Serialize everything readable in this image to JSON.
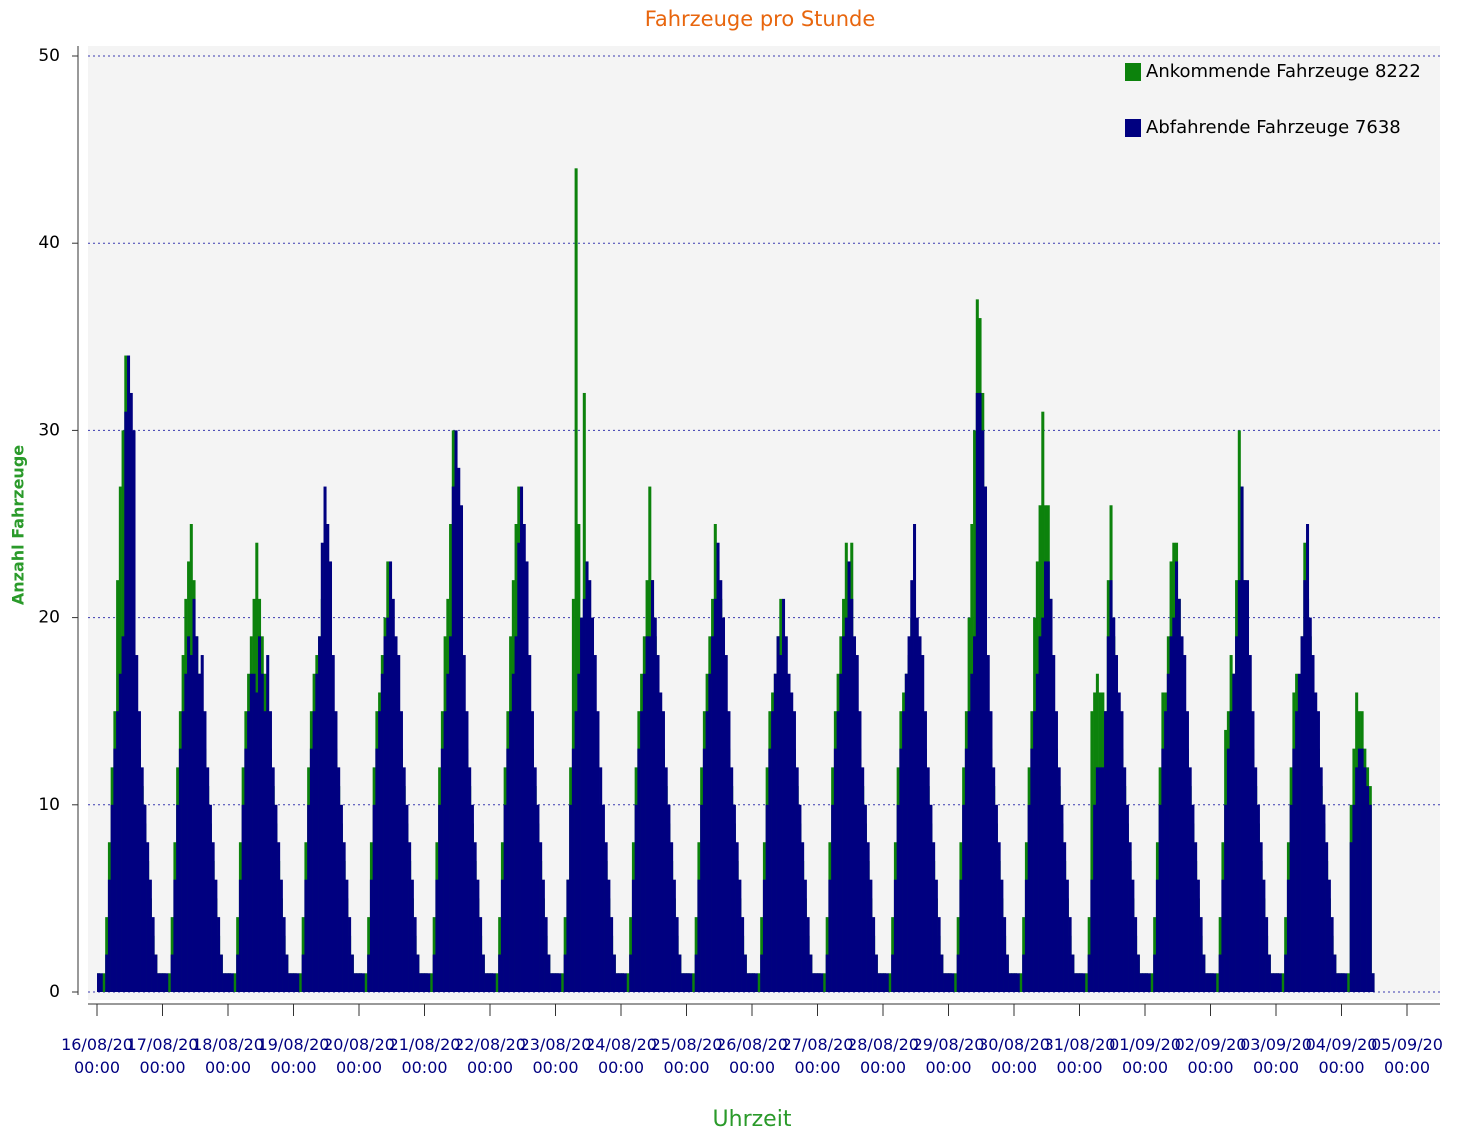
{
  "chart_data": {
    "type": "bar",
    "title": "Fahrzeuge pro Stunde",
    "x_label": "Uhrzeit",
    "y_label": "Anzahl Fahrzeuge",
    "grid": true,
    "legend": "top-right",
    "xlim": [
      0,
      480
    ],
    "ylim": [
      0,
      50
    ],
    "yticks": [
      0,
      10,
      20,
      30,
      40,
      50
    ],
    "xticks": [
      {
        "value": 0,
        "label": "16/08/20 00:00"
      },
      {
        "value": 24,
        "label": "17/08/20 00:00"
      },
      {
        "value": 48,
        "label": "18/08/20 00:00"
      },
      {
        "value": 72,
        "label": "19/08/20 00:00"
      },
      {
        "value": 96,
        "label": "20/08/20 00:00"
      },
      {
        "value": 120,
        "label": "21/08/20 00:00"
      },
      {
        "value": 144,
        "label": "22/08/20 00:00"
      },
      {
        "value": 168,
        "label": "23/08/20 00:00"
      },
      {
        "value": 192,
        "label": "24/08/20 00:00"
      },
      {
        "value": 216,
        "label": "25/08/20 00:00"
      },
      {
        "value": 240,
        "label": "26/08/20 00:00"
      },
      {
        "value": 264,
        "label": "27/08/20 00:00"
      },
      {
        "value": 288,
        "label": "28/08/20 00:00"
      },
      {
        "value": 312,
        "label": "29/08/20 00:00"
      },
      {
        "value": 336,
        "label": "30/08/20 00:00"
      },
      {
        "value": 360,
        "label": "31/08/20 00:00"
      },
      {
        "value": 384,
        "label": "01/09/20 00:00"
      },
      {
        "value": 408,
        "label": "02/09/20 00:00"
      },
      {
        "value": 432,
        "label": "03/09/20 00:00"
      },
      {
        "value": 456,
        "label": "04/09/20 00:00"
      },
      {
        "value": 480,
        "label": "05/09/20 00:00"
      }
    ],
    "x": [
      0,
      1,
      2,
      3,
      4,
      5,
      6,
      7,
      8,
      9,
      10,
      11,
      12,
      13,
      14,
      15,
      16,
      17,
      18,
      19,
      20,
      21,
      22,
      23,
      24,
      25,
      26,
      27,
      28,
      29,
      30,
      31,
      32,
      33,
      34,
      35,
      36,
      37,
      38,
      39,
      40,
      41,
      42,
      43,
      44,
      45,
      46,
      47,
      48,
      49,
      50,
      51,
      52,
      53,
      54,
      55,
      56,
      57,
      58,
      59,
      60,
      61,
      62,
      63,
      64,
      65,
      66,
      67,
      68,
      69,
      70,
      71,
      72,
      73,
      74,
      75,
      76,
      77,
      78,
      79,
      80,
      81,
      82,
      83,
      84,
      85,
      86,
      87,
      88,
      89,
      90,
      91,
      92,
      93,
      94,
      95,
      96,
      97,
      98,
      99,
      100,
      101,
      102,
      103,
      104,
      105,
      106,
      107,
      108,
      109,
      110,
      111,
      112,
      113,
      114,
      115,
      116,
      117,
      118,
      119,
      120,
      121,
      122,
      123,
      124,
      125,
      126,
      127,
      128,
      129,
      130,
      131,
      132,
      133,
      134,
      135,
      136,
      137,
      138,
      139,
      140,
      141,
      142,
      143,
      144,
      145,
      146,
      147,
      148,
      149,
      150,
      151,
      152,
      153,
      154,
      155,
      156,
      157,
      158,
      159,
      160,
      161,
      162,
      163,
      164,
      165,
      166,
      167,
      168,
      169,
      170,
      171,
      172,
      173,
      174,
      175,
      176,
      177,
      178,
      179,
      180,
      181,
      182,
      183,
      184,
      185,
      186,
      187,
      188,
      189,
      190,
      191,
      192,
      193,
      194,
      195,
      196,
      197,
      198,
      199,
      200,
      201,
      202,
      203,
      204,
      205,
      206,
      207,
      208,
      209,
      210,
      211,
      212,
      213,
      214,
      215,
      216,
      217,
      218,
      219,
      220,
      221,
      222,
      223,
      224,
      225,
      226,
      227,
      228,
      229,
      230,
      231,
      232,
      233,
      234,
      235,
      236,
      237,
      238,
      239,
      240,
      241,
      242,
      243,
      244,
      245,
      246,
      247,
      248,
      249,
      250,
      251,
      252,
      253,
      254,
      255,
      256,
      257,
      258,
      259,
      260,
      261,
      262,
      263,
      264,
      265,
      266,
      267,
      268,
      269,
      270,
      271,
      272,
      273,
      274,
      275,
      276,
      277,
      278,
      279,
      280,
      281,
      282,
      283,
      284,
      285,
      286,
      287,
      288,
      289,
      290,
      291,
      292,
      293,
      294,
      295,
      296,
      297,
      298,
      299,
      300,
      301,
      302,
      303,
      304,
      305,
      306,
      307,
      308,
      309,
      310,
      311,
      312,
      313,
      314,
      315,
      316,
      317,
      318,
      319,
      320,
      321,
      322,
      323,
      324,
      325,
      326,
      327,
      328,
      329,
      330,
      331,
      332,
      333,
      334,
      335,
      336,
      337,
      338,
      339,
      340,
      341,
      342,
      343,
      344,
      345,
      346,
      347,
      348,
      349,
      350,
      351,
      352,
      353,
      354,
      355,
      356,
      357,
      358,
      359,
      360,
      361,
      362,
      363,
      364,
      365,
      366,
      367,
      368,
      369,
      370,
      371,
      372,
      373,
      374,
      375,
      376,
      377,
      378,
      379,
      380,
      381,
      382,
      383,
      384,
      385,
      386,
      387,
      388,
      389,
      390,
      391,
      392,
      393,
      394,
      395,
      396,
      397,
      398,
      399,
      400,
      401,
      402,
      403,
      404,
      405,
      406,
      407,
      408,
      409,
      410,
      411,
      412,
      413,
      414,
      415,
      416,
      417,
      418,
      419,
      420,
      421,
      422,
      423,
      424,
      425,
      426,
      427,
      428,
      429,
      430,
      431,
      432,
      433,
      434,
      435,
      436,
      437,
      438,
      439,
      440,
      441,
      442,
      443,
      444,
      445,
      446,
      447,
      448,
      449,
      450,
      451,
      452,
      453,
      454,
      455,
      456,
      457,
      458,
      459,
      460,
      461,
      462,
      463,
      464,
      465,
      466,
      467,
      468
    ],
    "series": [
      {
        "name": "Ankommende Fahrzeuge 8222",
        "color": "#0c820c",
        "values": [
          1,
          0,
          1,
          4,
          8,
          12,
          15,
          22,
          27,
          30,
          34,
          30,
          26,
          22,
          15,
          13,
          11,
          9,
          7,
          5,
          3,
          2,
          1,
          1,
          1,
          0,
          1,
          4,
          8,
          12,
          15,
          18,
          21,
          23,
          25,
          22,
          19,
          17,
          15,
          13,
          11,
          9,
          7,
          5,
          3,
          2,
          1,
          1,
          1,
          0,
          1,
          4,
          8,
          12,
          15,
          17,
          19,
          21,
          24,
          21,
          19,
          17,
          15,
          13,
          11,
          9,
          7,
          5,
          3,
          2,
          1,
          1,
          1,
          0,
          1,
          4,
          8,
          12,
          15,
          17,
          18,
          19,
          21,
          19,
          18,
          17,
          15,
          13,
          11,
          9,
          7,
          5,
          3,
          2,
          1,
          1,
          1,
          0,
          1,
          4,
          8,
          12,
          15,
          16,
          18,
          20,
          23,
          22,
          18,
          17,
          15,
          13,
          11,
          9,
          7,
          5,
          3,
          2,
          1,
          1,
          1,
          0,
          1,
          4,
          8,
          12,
          15,
          19,
          21,
          25,
          30,
          28,
          25,
          22,
          15,
          13,
          11,
          9,
          7,
          5,
          3,
          2,
          1,
          1,
          1,
          0,
          1,
          4,
          8,
          12,
          15,
          19,
          22,
          25,
          27,
          25,
          22,
          18,
          15,
          13,
          11,
          9,
          7,
          5,
          3,
          2,
          1,
          1,
          1,
          0,
          1,
          4,
          6,
          12,
          21,
          44,
          25,
          20,
          32,
          18,
          16,
          14,
          12,
          10,
          9,
          8,
          7,
          5,
          3,
          2,
          1,
          1,
          1,
          0,
          1,
          4,
          8,
          12,
          15,
          17,
          19,
          22,
          27,
          22,
          19,
          17,
          15,
          13,
          11,
          9,
          7,
          5,
          3,
          2,
          1,
          1,
          1,
          0,
          1,
          4,
          8,
          12,
          15,
          17,
          19,
          21,
          25,
          23,
          21,
          17,
          15,
          13,
          11,
          9,
          7,
          5,
          3,
          2,
          1,
          1,
          1,
          0,
          1,
          4,
          8,
          12,
          15,
          16,
          17,
          19,
          21,
          19,
          17,
          16,
          15,
          13,
          11,
          9,
          7,
          5,
          3,
          2,
          1,
          1,
          1,
          0,
          1,
          4,
          8,
          12,
          15,
          17,
          19,
          21,
          24,
          22,
          24,
          17,
          15,
          13,
          11,
          9,
          7,
          5,
          3,
          2,
          1,
          1,
          1,
          0,
          1,
          4,
          8,
          12,
          15,
          16,
          17,
          18,
          20,
          18,
          17,
          16,
          15,
          13,
          11,
          9,
          7,
          5,
          3,
          2,
          1,
          1,
          1,
          0,
          1,
          4,
          8,
          12,
          15,
          20,
          25,
          30,
          37,
          36,
          32,
          27,
          15,
          13,
          11,
          9,
          7,
          5,
          3,
          2,
          1,
          1,
          1,
          0,
          1,
          4,
          8,
          12,
          15,
          20,
          23,
          26,
          31,
          26,
          26,
          21,
          15,
          13,
          11,
          9,
          7,
          5,
          3,
          2,
          1,
          1,
          1,
          0,
          1,
          4,
          15,
          16,
          17,
          16,
          16,
          15,
          22,
          26,
          19,
          17,
          15,
          13,
          11,
          9,
          7,
          5,
          3,
          2,
          1,
          1,
          1,
          0,
          1,
          4,
          8,
          12,
          16,
          16,
          19,
          23,
          24,
          24,
          21,
          17,
          15,
          13,
          11,
          9,
          7,
          5,
          3,
          2,
          1,
          1,
          1,
          0,
          1,
          4,
          8,
          14,
          15,
          18,
          17,
          22,
          30,
          27,
          22,
          17,
          15,
          13,
          11,
          9,
          7,
          5,
          3,
          2,
          1,
          1,
          1,
          0,
          1,
          4,
          8,
          12,
          16,
          17,
          15,
          19,
          24,
          21,
          19,
          17,
          15,
          13,
          11,
          9,
          7,
          5,
          3,
          2,
          1,
          1,
          1,
          0,
          1,
          10,
          13,
          16,
          15,
          15,
          13,
          12,
          11,
          1,
          0
        ]
      },
      {
        "name": "Abfahrende Fahrzeuge 7638",
        "color": "#000080",
        "values": [
          1,
          1,
          0,
          2,
          6,
          10,
          13,
          15,
          17,
          19,
          31,
          34,
          32,
          30,
          18,
          15,
          12,
          10,
          8,
          6,
          4,
          2,
          1,
          1,
          1,
          1,
          0,
          2,
          6,
          10,
          13,
          15,
          17,
          19,
          18,
          21,
          19,
          17,
          18,
          15,
          12,
          10,
          8,
          6,
          4,
          2,
          1,
          1,
          1,
          1,
          0,
          2,
          6,
          10,
          13,
          15,
          17,
          17,
          16,
          19,
          17,
          15,
          18,
          15,
          12,
          10,
          8,
          6,
          4,
          2,
          1,
          1,
          1,
          1,
          0,
          2,
          6,
          10,
          13,
          15,
          17,
          19,
          24,
          27,
          25,
          23,
          18,
          15,
          12,
          10,
          8,
          6,
          4,
          2,
          1,
          1,
          1,
          1,
          0,
          2,
          6,
          10,
          13,
          15,
          17,
          19,
          20,
          23,
          21,
          19,
          18,
          15,
          12,
          10,
          8,
          6,
          4,
          2,
          1,
          1,
          1,
          1,
          0,
          2,
          6,
          10,
          13,
          15,
          17,
          19,
          27,
          30,
          28,
          26,
          18,
          15,
          12,
          10,
          8,
          6,
          4,
          2,
          1,
          1,
          1,
          1,
          0,
          2,
          6,
          10,
          13,
          15,
          17,
          19,
          24,
          27,
          25,
          23,
          18,
          15,
          12,
          10,
          8,
          6,
          4,
          2,
          1,
          1,
          1,
          1,
          0,
          2,
          6,
          10,
          13,
          15,
          17,
          20,
          21,
          23,
          22,
          20,
          18,
          15,
          12,
          10,
          8,
          6,
          4,
          2,
          1,
          1,
          1,
          1,
          0,
          2,
          6,
          10,
          13,
          15,
          17,
          19,
          19,
          22,
          20,
          18,
          16,
          15,
          12,
          10,
          8,
          6,
          4,
          2,
          1,
          1,
          1,
          1,
          0,
          2,
          6,
          10,
          13,
          15,
          17,
          19,
          21,
          24,
          22,
          20,
          18,
          15,
          12,
          10,
          8,
          6,
          4,
          2,
          1,
          1,
          1,
          1,
          0,
          2,
          6,
          10,
          13,
          15,
          17,
          19,
          18,
          21,
          19,
          17,
          16,
          15,
          12,
          10,
          8,
          6,
          4,
          2,
          1,
          1,
          1,
          1,
          0,
          2,
          6,
          10,
          13,
          15,
          17,
          19,
          20,
          23,
          21,
          19,
          18,
          15,
          12,
          10,
          8,
          6,
          4,
          2,
          1,
          1,
          1,
          1,
          0,
          2,
          6,
          10,
          13,
          15,
          17,
          19,
          22,
          25,
          20,
          19,
          18,
          15,
          12,
          10,
          8,
          6,
          4,
          2,
          1,
          1,
          1,
          1,
          0,
          2,
          6,
          10,
          13,
          15,
          17,
          19,
          32,
          32,
          30,
          27,
          18,
          15,
          12,
          10,
          8,
          6,
          4,
          2,
          1,
          1,
          1,
          1,
          0,
          2,
          6,
          10,
          13,
          15,
          17,
          19,
          20,
          23,
          23,
          21,
          18,
          15,
          12,
          10,
          8,
          6,
          4,
          2,
          1,
          1,
          1,
          1,
          0,
          2,
          6,
          10,
          12,
          12,
          12,
          15,
          19,
          22,
          20,
          18,
          16,
          15,
          12,
          10,
          8,
          6,
          4,
          2,
          1,
          1,
          1,
          1,
          0,
          2,
          6,
          10,
          13,
          15,
          17,
          19,
          20,
          23,
          21,
          19,
          18,
          15,
          12,
          10,
          8,
          6,
          4,
          2,
          1,
          1,
          1,
          1,
          0,
          2,
          6,
          10,
          13,
          15,
          17,
          19,
          22,
          27,
          22,
          22,
          18,
          15,
          12,
          10,
          8,
          6,
          4,
          2,
          1,
          1,
          1,
          1,
          0,
          2,
          6,
          10,
          13,
          15,
          17,
          19,
          22,
          25,
          20,
          18,
          16,
          15,
          12,
          10,
          8,
          6,
          4,
          2,
          1,
          1,
          1,
          1,
          0,
          8,
          10,
          12,
          13,
          13,
          12,
          11,
          10,
          1,
          0
        ]
      }
    ]
  }
}
